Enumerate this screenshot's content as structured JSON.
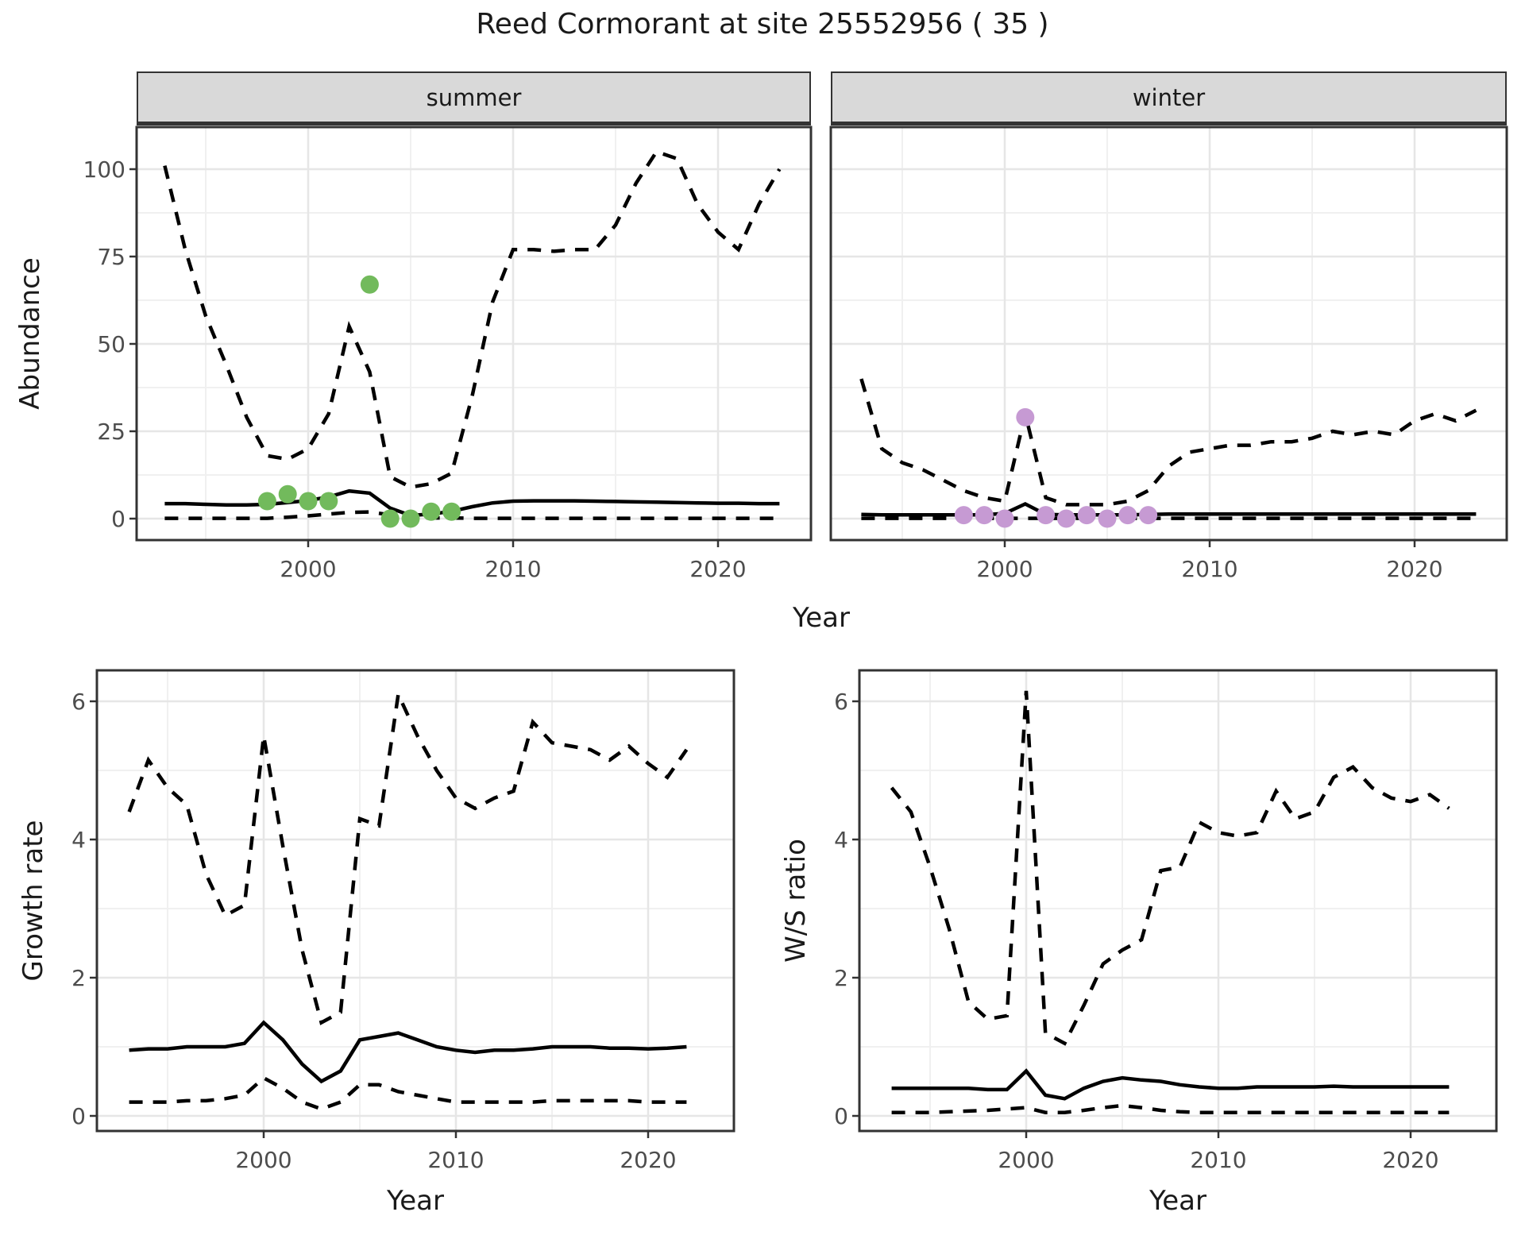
{
  "title": "Reed Cormorant at site 25552956 ( 35 )",
  "colors": {
    "line": "#000000",
    "summer_points": "#72ba5c",
    "winter_points": "#c69ad3",
    "grid_major": "#e6e6e6",
    "grid_minor": "#f0f0f0",
    "panel_border": "#333333",
    "strip_bg": "#d9d9d9",
    "tick_label": "#4d4d4d",
    "text": "#1a1a1a"
  },
  "chart_data": [
    {
      "id": "summer",
      "type": "line",
      "facet_label": "summer",
      "xlabel": "Year",
      "ylabel": "Abundance",
      "xlim": [
        1991.5,
        2024.5
      ],
      "ylim": [
        -6,
        114
      ],
      "grid": true,
      "legend": "none",
      "xticks": {
        "values": [
          2000,
          2010,
          2020
        ],
        "labels": [
          "2000",
          "2010",
          "2020"
        ]
      },
      "yticks": {
        "values": [
          0,
          25,
          50,
          75,
          100
        ],
        "labels": [
          "0",
          "25",
          "50",
          "75",
          "100"
        ],
        "show_labels": true
      },
      "years": [
        1993,
        1994,
        1995,
        1996,
        1997,
        1998,
        1999,
        2000,
        2001,
        2002,
        2003,
        2004,
        2005,
        2006,
        2007,
        2008,
        2009,
        2010,
        2011,
        2012,
        2013,
        2014,
        2015,
        2016,
        2017,
        2018,
        2019,
        2020,
        2021,
        2022,
        2023
      ],
      "series": [
        {
          "name": "upper-ci",
          "linetype": "dashed",
          "values": [
            101,
            77,
            58,
            44,
            29,
            18,
            17,
            20,
            30,
            55,
            42,
            12,
            9,
            10,
            13,
            35,
            62,
            77,
            77,
            76.5,
            77,
            77,
            84,
            96,
            105,
            103,
            90,
            82,
            77,
            90,
            100
          ]
        },
        {
          "name": "median",
          "linetype": "solid",
          "values": [
            4.3,
            4.3,
            4.1,
            3.9,
            3.9,
            4.1,
            4.6,
            5.2,
            6.2,
            7.9,
            7.3,
            3.0,
            0.9,
            1.3,
            2.1,
            3.4,
            4.5,
            5.0,
            5.1,
            5.1,
            5.1,
            5.0,
            4.9,
            4.8,
            4.7,
            4.6,
            4.5,
            4.4,
            4.4,
            4.3,
            4.3
          ]
        },
        {
          "name": "lower-ci",
          "linetype": "dashed",
          "values": [
            0.1,
            0.1,
            0.1,
            0.1,
            0.1,
            0.1,
            0.4,
            0.8,
            1.3,
            1.8,
            1.9,
            1.1,
            0.3,
            0.2,
            0.2,
            0.1,
            0.1,
            0.1,
            0.1,
            0.1,
            0.1,
            0.1,
            0.1,
            0.1,
            0.1,
            0.1,
            0.1,
            0.1,
            0.1,
            0.1,
            0.1
          ]
        }
      ],
      "points": {
        "name": "summer-observations",
        "color_key": "summer_points",
        "years": [
          1998,
          1999,
          2000,
          2001,
          2003,
          2004,
          2005,
          2006,
          2007
        ],
        "values": [
          5,
          7,
          5,
          5,
          67,
          0,
          0,
          2,
          2
        ]
      }
    },
    {
      "id": "winter",
      "type": "line",
      "facet_label": "winter",
      "xlabel": "Year",
      "ylabel": "Abundance",
      "xlim": [
        1991.5,
        2024.5
      ],
      "ylim": [
        -6,
        114
      ],
      "grid": true,
      "legend": "none",
      "xticks": {
        "values": [
          2000,
          2010,
          2020
        ],
        "labels": [
          "2000",
          "2010",
          "2020"
        ]
      },
      "yticks": {
        "values": [
          0,
          25,
          50,
          75,
          100
        ],
        "labels": [
          "0",
          "25",
          "50",
          "75",
          "100"
        ],
        "show_labels": false
      },
      "years": [
        1993,
        1994,
        1995,
        1996,
        1997,
        1998,
        1999,
        2000,
        2001,
        2002,
        2003,
        2004,
        2005,
        2006,
        2007,
        2008,
        2009,
        2010,
        2011,
        2012,
        2013,
        2014,
        2015,
        2016,
        2017,
        2018,
        2019,
        2020,
        2021,
        2022,
        2023
      ],
      "series": [
        {
          "name": "upper-ci",
          "linetype": "dashed",
          "values": [
            40,
            20,
            16,
            14,
            11,
            8,
            6,
            5,
            30,
            6,
            4,
            4,
            4,
            5,
            8,
            15,
            19,
            20,
            21,
            21,
            22,
            22,
            23,
            25,
            24,
            25,
            24,
            28,
            30,
            28,
            31
          ]
        },
        {
          "name": "median",
          "linetype": "solid",
          "values": [
            1.2,
            1.1,
            1.1,
            1.1,
            1.1,
            1.1,
            1.1,
            1.5,
            4.2,
            1.2,
            1.1,
            1.1,
            1.1,
            1.1,
            1.2,
            1.3,
            1.3,
            1.3,
            1.3,
            1.3,
            1.3,
            1.3,
            1.3,
            1.3,
            1.3,
            1.3,
            1.3,
            1.3,
            1.3,
            1.3,
            1.3
          ]
        },
        {
          "name": "lower-ci",
          "linetype": "dashed",
          "values": [
            0.1,
            0.1,
            0.1,
            0.1,
            0.1,
            0.1,
            0.1,
            0.1,
            0.1,
            0.1,
            0.1,
            0.1,
            0.1,
            0.1,
            0.1,
            0.1,
            0.1,
            0.1,
            0.1,
            0.1,
            0.1,
            0.1,
            0.1,
            0.1,
            0.1,
            0.1,
            0.1,
            0.1,
            0.1,
            0.1,
            0.1
          ]
        }
      ],
      "points": {
        "name": "winter-observations",
        "color_key": "winter_points",
        "years": [
          1998,
          1999,
          2000,
          2001,
          2002,
          2003,
          2004,
          2005,
          2006,
          2007
        ],
        "values": [
          1,
          1,
          0,
          29,
          1,
          0,
          1,
          0,
          1,
          1
        ]
      }
    },
    {
      "id": "growth",
      "type": "line",
      "facet_label": null,
      "xlabel": "Year",
      "ylabel": "Growth rate",
      "xlim": [
        1991.3,
        2024.5
      ],
      "ylim": [
        -0.2,
        6.45
      ],
      "grid": true,
      "legend": "none",
      "xticks": {
        "values": [
          2000,
          2010,
          2020
        ],
        "labels": [
          "2000",
          "2010",
          "2020"
        ]
      },
      "yticks": {
        "values": [
          0,
          2,
          4,
          6
        ],
        "labels": [
          "0",
          "2",
          "4",
          "6"
        ],
        "show_labels": true
      },
      "years": [
        1993,
        1994,
        1995,
        1996,
        1997,
        1998,
        1999,
        2000,
        2001,
        2002,
        2003,
        2004,
        2005,
        2006,
        2007,
        2008,
        2009,
        2010,
        2011,
        2012,
        2013,
        2014,
        2015,
        2016,
        2017,
        2018,
        2019,
        2020,
        2021,
        2022
      ],
      "series": [
        {
          "name": "upper-ci",
          "linetype": "dashed",
          "values": [
            4.4,
            5.15,
            4.75,
            4.5,
            3.5,
            2.9,
            3.05,
            5.5,
            3.9,
            2.4,
            1.35,
            1.5,
            4.3,
            4.2,
            6.1,
            5.5,
            5.0,
            4.6,
            4.45,
            4.6,
            4.7,
            5.7,
            5.4,
            5.35,
            5.3,
            5.15,
            5.35,
            5.1,
            4.9,
            5.3
          ]
        },
        {
          "name": "median",
          "linetype": "solid",
          "values": [
            0.95,
            0.97,
            0.97,
            1.0,
            1.0,
            1.0,
            1.05,
            1.35,
            1.1,
            0.75,
            0.5,
            0.65,
            1.1,
            1.15,
            1.2,
            1.1,
            1.0,
            0.95,
            0.92,
            0.95,
            0.95,
            0.97,
            1.0,
            1.0,
            1.0,
            0.98,
            0.98,
            0.97,
            0.98,
            1.0
          ]
        },
        {
          "name": "lower-ci",
          "linetype": "dashed",
          "values": [
            0.2,
            0.2,
            0.2,
            0.22,
            0.22,
            0.25,
            0.3,
            0.55,
            0.4,
            0.2,
            0.1,
            0.2,
            0.45,
            0.45,
            0.35,
            0.3,
            0.25,
            0.2,
            0.2,
            0.2,
            0.2,
            0.2,
            0.22,
            0.22,
            0.22,
            0.22,
            0.22,
            0.2,
            0.2,
            0.2
          ]
        }
      ],
      "points": null
    },
    {
      "id": "ws",
      "type": "line",
      "facet_label": null,
      "xlabel": "Year",
      "ylabel": "W/S ratio",
      "xlim": [
        1991.3,
        2024.5
      ],
      "ylim": [
        -0.2,
        6.45
      ],
      "grid": true,
      "legend": "none",
      "xticks": {
        "values": [
          2000,
          2010,
          2020
        ],
        "labels": [
          "2000",
          "2010",
          "2020"
        ]
      },
      "yticks": {
        "values": [
          0,
          2,
          4,
          6
        ],
        "labels": [
          "0",
          "2",
          "4",
          "6"
        ],
        "show_labels": true
      },
      "years": [
        1993,
        1994,
        1995,
        1996,
        1997,
        1998,
        1999,
        2000,
        2001,
        2002,
        2003,
        2004,
        2005,
        2006,
        2007,
        2008,
        2009,
        2010,
        2011,
        2012,
        2013,
        2014,
        2015,
        2016,
        2017,
        2018,
        2019,
        2020,
        2021,
        2022
      ],
      "series": [
        {
          "name": "upper-ci",
          "linetype": "dashed",
          "values": [
            4.75,
            4.4,
            3.6,
            2.7,
            1.65,
            1.4,
            1.45,
            6.15,
            1.2,
            1.05,
            1.6,
            2.2,
            2.4,
            2.55,
            3.55,
            3.6,
            4.25,
            4.1,
            4.05,
            4.1,
            4.7,
            4.3,
            4.4,
            4.9,
            5.05,
            4.75,
            4.6,
            4.55,
            4.65,
            4.45
          ]
        },
        {
          "name": "median",
          "linetype": "solid",
          "values": [
            0.4,
            0.4,
            0.4,
            0.4,
            0.4,
            0.38,
            0.38,
            0.65,
            0.3,
            0.25,
            0.4,
            0.5,
            0.55,
            0.52,
            0.5,
            0.45,
            0.42,
            0.4,
            0.4,
            0.42,
            0.42,
            0.42,
            0.42,
            0.43,
            0.42,
            0.42,
            0.42,
            0.42,
            0.42,
            0.42
          ]
        },
        {
          "name": "lower-ci",
          "linetype": "dashed",
          "values": [
            0.05,
            0.05,
            0.05,
            0.06,
            0.07,
            0.08,
            0.1,
            0.12,
            0.05,
            0.05,
            0.08,
            0.12,
            0.15,
            0.12,
            0.08,
            0.06,
            0.05,
            0.05,
            0.05,
            0.05,
            0.05,
            0.05,
            0.05,
            0.05,
            0.05,
            0.05,
            0.05,
            0.05,
            0.05,
            0.05
          ]
        }
      ],
      "points": null
    }
  ]
}
